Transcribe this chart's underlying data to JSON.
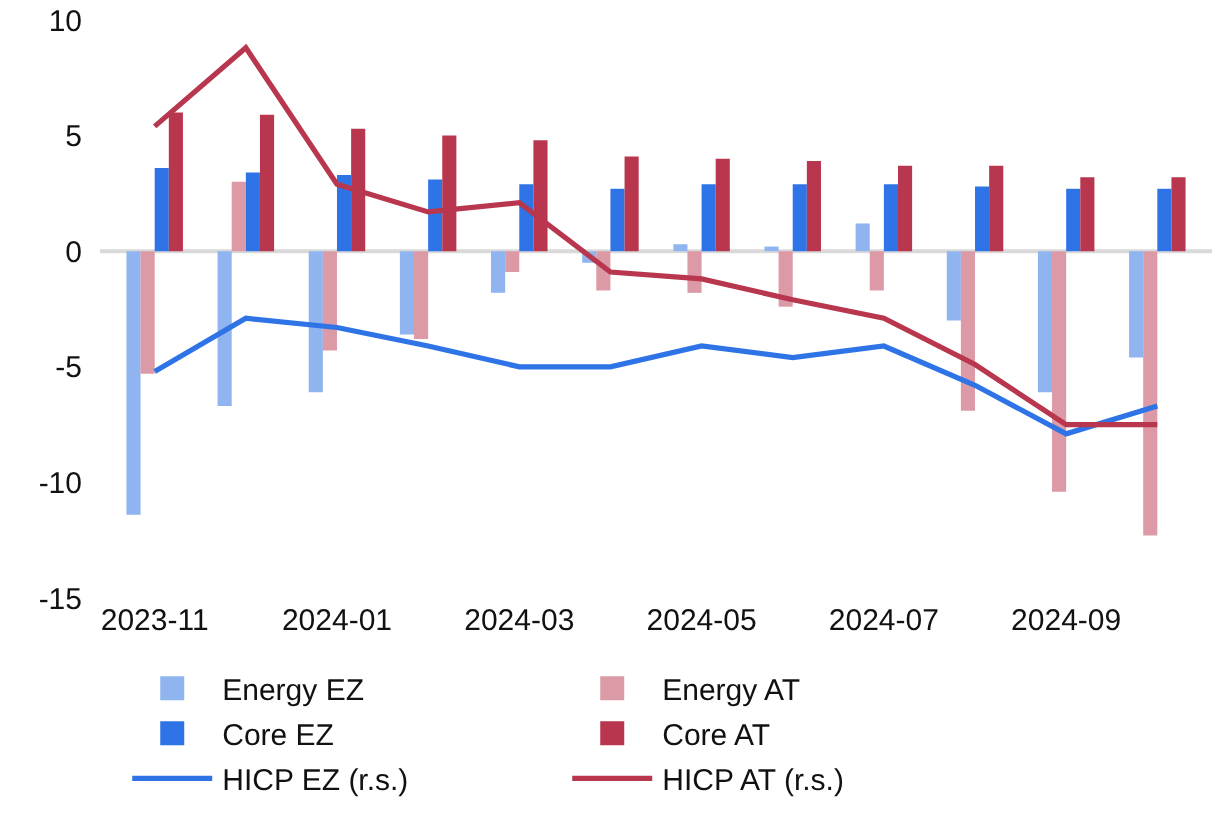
{
  "chart_data": {
    "type": "bar",
    "categories": [
      "2023-11",
      null,
      "2024-01",
      null,
      "2024-03",
      null,
      "2024-05",
      null,
      "2024-07",
      null,
      "2024-09",
      null
    ],
    "series": [
      {
        "name": "Energy EZ",
        "color": "#8fb4f0",
        "values": [
          -11.4,
          -6.7,
          -6.1,
          -3.6,
          -1.8,
          -0.5,
          0.3,
          0.2,
          1.2,
          -3.0,
          -6.1,
          -4.6
        ]
      },
      {
        "name": "Energy AT",
        "color": "#dc9aa6",
        "values": [
          -5.3,
          3.0,
          -4.3,
          -3.8,
          -0.9,
          -1.7,
          -1.8,
          -2.4,
          -1.7,
          -6.9,
          -10.4,
          -12.3
        ]
      },
      {
        "name": "Core EZ",
        "color": "#2f74e6",
        "values": [
          3.6,
          3.4,
          3.3,
          3.1,
          2.9,
          2.7,
          2.9,
          2.9,
          2.9,
          2.8,
          2.7,
          2.7
        ]
      },
      {
        "name": "Core AT",
        "color": "#b8374e",
        "values": [
          6.0,
          5.9,
          5.3,
          5.0,
          4.8,
          4.1,
          4.0,
          3.9,
          3.7,
          3.7,
          3.2,
          3.2
        ]
      },
      {
        "name": "HICP EZ (r.s.)",
        "color": "#2f74e6",
        "type": "line",
        "values": [
          -5.2,
          -2.9,
          -3.3,
          -4.1,
          -5.0,
          -5.0,
          -4.1,
          -4.6,
          -4.1,
          -5.8,
          -7.9,
          -6.7
        ]
      },
      {
        "name": "HICP AT (r.s.)",
        "color": "#b8374e",
        "type": "line",
        "values": [
          5.4,
          8.8,
          2.9,
          1.7,
          2.1,
          -0.9,
          -1.2,
          -2.1,
          -2.9,
          -4.9,
          -7.5,
          -7.5
        ]
      }
    ],
    "ylim": [
      -15,
      10
    ],
    "yticks": [
      -15,
      -10,
      -5,
      0,
      5,
      10
    ],
    "grid": false,
    "ref_lines": [
      {
        "axis": "y",
        "value": 0,
        "color": "#d9d9d9"
      }
    ],
    "legend": "bottom",
    "marker": "none",
    "line_style": "solid"
  }
}
